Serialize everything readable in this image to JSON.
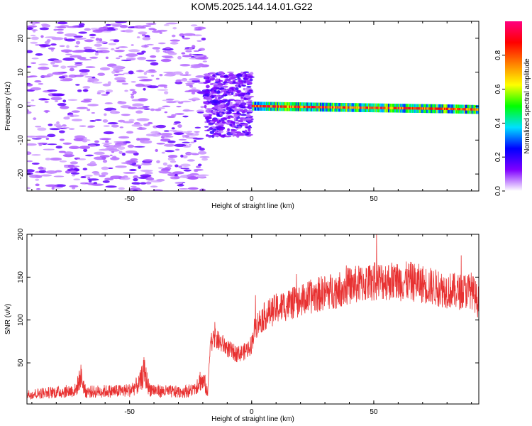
{
  "title": "KOM5.2025.144.14.01.G22",
  "chart_data": [
    {
      "type": "heatmap",
      "xlabel": "Height of straight line (km)",
      "ylabel": "Frequency (Hz)",
      "xlim": [
        -92,
        93
      ],
      "ylim": [
        -25,
        25
      ],
      "xticks": [
        -50,
        0,
        50
      ],
      "yticks": [
        -20,
        -10,
        0,
        10,
        20
      ],
      "grid": false,
      "colorbar": {
        "label": "Normalized spectral amplitude",
        "range": [
          0,
          1
        ],
        "ticks": [
          "0.0",
          "0.2",
          "0.4",
          "0.6",
          "0.8"
        ],
        "colormap": "rainbow",
        "colors": [
          "#ffffff",
          "#8000ff",
          "#0000ff",
          "#00e0ff",
          "#00ff00",
          "#ffff00",
          "#ff8000",
          "#ff0000",
          "#ff0080"
        ]
      },
      "regions": [
        {
          "x": [
            -92,
            -19
          ],
          "freq": [
            -25,
            25
          ],
          "amplitude": 0.05,
          "description_kind": "sparse-noise"
        },
        {
          "x": [
            -19,
            0
          ],
          "freq": [
            -9,
            10
          ],
          "amplitude": 0.15,
          "description_kind": "dense-noise"
        },
        {
          "x": [
            0,
            93
          ],
          "freq": [
            -1.4,
            0.4
          ],
          "amplitude": 0.9,
          "description_kind": "carrier-line"
        }
      ],
      "carrier_track": {
        "x": [
          0,
          10,
          20,
          30,
          40,
          50,
          60,
          70,
          80,
          93
        ],
        "freq": [
          0.0,
          -0.1,
          -0.2,
          -0.3,
          -0.4,
          -0.5,
          -0.6,
          -0.7,
          -0.8,
          -1.0
        ]
      }
    },
    {
      "type": "line",
      "xlabel": "Height of straight line (km)",
      "ylabel": "SNR (v/v)",
      "xlim": [
        -92,
        93
      ],
      "ylim": [
        2,
        200
      ],
      "xticks": [
        -50,
        0,
        50
      ],
      "yticks": [
        50,
        100,
        150,
        200
      ],
      "grid": false,
      "series_color": "#e83232",
      "x": [
        -92,
        -85,
        -78,
        -72,
        -70,
        -68,
        -60,
        -55,
        -50,
        -46,
        -44,
        -42,
        -38,
        -30,
        -24,
        -21,
        -19,
        -18,
        -17,
        -15,
        -12,
        -9,
        -6,
        -3,
        -1,
        0,
        1,
        3,
        6,
        10,
        15,
        20,
        25,
        30,
        35,
        40,
        45,
        50,
        55,
        60,
        65,
        70,
        75,
        80,
        85,
        90,
        93
      ],
      "y": [
        13,
        15,
        16,
        18,
        35,
        16,
        17,
        17,
        18,
        25,
        40,
        20,
        17,
        16,
        18,
        30,
        25,
        12,
        75,
        78,
        72,
        65,
        60,
        63,
        68,
        72,
        88,
        98,
        106,
        113,
        118,
        122,
        128,
        132,
        135,
        140,
        142,
        145,
        146,
        145,
        145,
        142,
        138,
        135,
        133,
        135,
        120
      ]
    }
  ]
}
